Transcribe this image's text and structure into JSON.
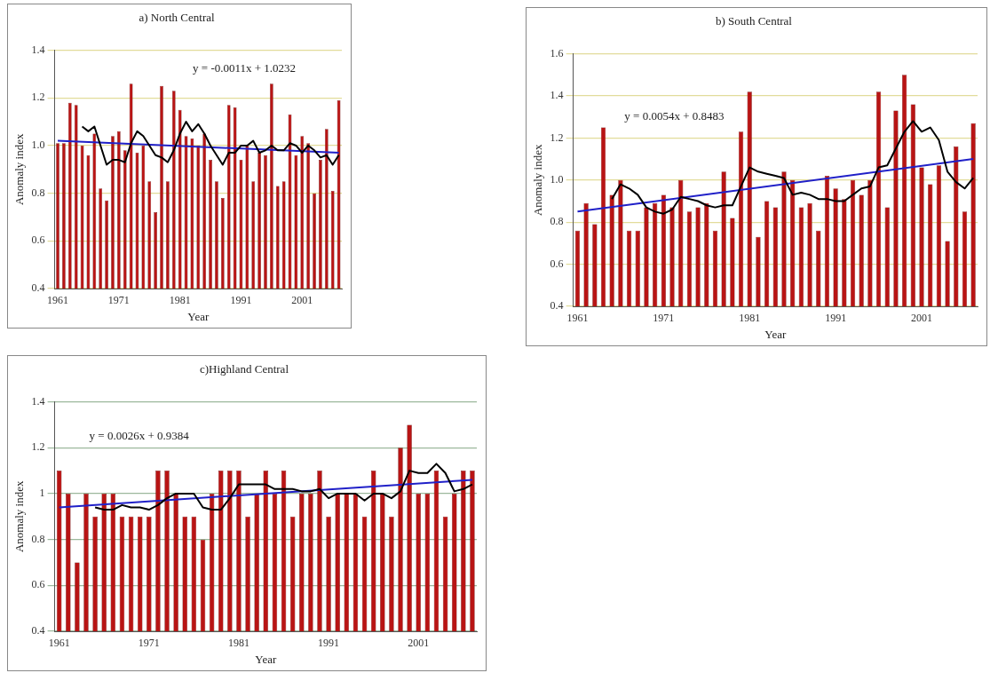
{
  "chart_data": [
    {
      "type": "bar",
      "title": "a) North Central",
      "xlabel": "Year",
      "ylabel": "Anomaly index",
      "grid": "y",
      "legend": false,
      "marker": "none",
      "line_style": "solid",
      "x": [
        1961,
        1962,
        1963,
        1964,
        1965,
        1966,
        1967,
        1968,
        1969,
        1970,
        1971,
        1972,
        1973,
        1974,
        1975,
        1976,
        1977,
        1978,
        1979,
        1980,
        1981,
        1982,
        1983,
        1984,
        1985,
        1986,
        1987,
        1988,
        1989,
        1990,
        1991,
        1992,
        1993,
        1994,
        1995,
        1996,
        1997,
        1998,
        1999,
        2000,
        2001,
        2002,
        2003,
        2004,
        2005,
        2006,
        2007
      ],
      "xlim": [
        1960.5,
        2007.5
      ],
      "xticks": [
        1961,
        1971,
        1981,
        1991,
        2001
      ],
      "ylim": [
        0.4,
        1.4
      ],
      "yticks": [
        0.4,
        0.6,
        0.8,
        {
          "value": 1,
          "label": "1.0"
        },
        1.2,
        1.4
      ],
      "annotations": [
        "y = -0.0011x + 1.0232"
      ],
      "series": [
        {
          "color": "#b81414",
          "values": [
            1.01,
            1.01,
            1.18,
            1.17,
            1.0,
            0.96,
            1.05,
            0.82,
            0.77,
            1.04,
            1.06,
            0.98,
            1.26,
            0.97,
            1.0,
            0.85,
            0.72,
            1.25,
            0.85,
            1.23,
            1.15,
            1.04,
            1.03,
            1.0,
            1.05,
            0.94,
            0.85,
            0.78,
            1.17,
            1.16,
            0.94,
            1.0,
            0.85,
            0.97,
            0.96,
            1.26,
            0.83,
            0.85,
            1.13,
            0.96,
            1.04,
            1.01,
            0.8,
            0.94,
            1.07,
            0.81,
            1.19
          ]
        },
        {
          "type": "line",
          "color": "#000000",
          "x": [
            1965,
            1966,
            1967,
            1968,
            1969,
            1970,
            1971,
            1972,
            1973,
            1974,
            1975,
            1976,
            1977,
            1978,
            1979,
            1980,
            1981,
            1982,
            1983,
            1984,
            1985,
            1986,
            1987,
            1988,
            1989,
            1990,
            1991,
            1992,
            1993,
            1994,
            1995,
            1996,
            1997,
            1998,
            1999,
            2000,
            2001,
            2002,
            2003,
            2004,
            2005,
            2006,
            2007
          ],
          "values": [
            1.08,
            1.06,
            1.08,
            1.0,
            0.92,
            0.94,
            0.94,
            0.93,
            1.01,
            1.06,
            1.04,
            1.0,
            0.96,
            0.95,
            0.93,
            0.98,
            1.05,
            1.1,
            1.06,
            1.09,
            1.05,
            1.0,
            0.96,
            0.92,
            0.97,
            0.97,
            1.0,
            1.0,
            1.02,
            0.97,
            0.98,
            1.0,
            0.98,
            0.98,
            1.01,
            1.0,
            0.97,
            1.0,
            0.98,
            0.95,
            0.96,
            0.92,
            0.96
          ]
        },
        {
          "type": "line",
          "color": "#2020c8",
          "x": [
            1961,
            2007
          ],
          "values": [
            1.02,
            0.97
          ]
        }
      ]
    },
    {
      "type": "bar",
      "title": "b) South Central",
      "xlabel": "Year",
      "ylabel": "Anomaly index",
      "grid": "y",
      "legend": false,
      "marker": "none",
      "line_style": "solid",
      "x": [
        1961,
        1962,
        1963,
        1964,
        1965,
        1966,
        1967,
        1968,
        1969,
        1970,
        1971,
        1972,
        1973,
        1974,
        1975,
        1976,
        1977,
        1978,
        1979,
        1980,
        1981,
        1982,
        1983,
        1984,
        1985,
        1986,
        1987,
        1988,
        1989,
        1990,
        1991,
        1992,
        1993,
        1994,
        1995,
        1996,
        1997,
        1998,
        1999,
        2000,
        2001,
        2002,
        2003,
        2004,
        2005,
        2006,
        2007
      ],
      "xlim": [
        1960.5,
        2007.5
      ],
      "xticks": [
        1961,
        1971,
        1981,
        1991,
        2001
      ],
      "ylim": [
        0.4,
        1.6
      ],
      "yticks": [
        0.4,
        0.6,
        0.8,
        {
          "value": 1,
          "label": "1.0"
        },
        1.2,
        1.4,
        1.6
      ],
      "annotations": [
        "y = 0.0054x + 0.8483"
      ],
      "series": [
        {
          "color": "#b81414",
          "values": [
            0.76,
            0.89,
            0.79,
            1.25,
            0.93,
            1.0,
            0.76,
            0.76,
            0.87,
            0.89,
            0.93,
            0.87,
            1.0,
            0.85,
            0.87,
            0.89,
            0.76,
            1.04,
            0.82,
            1.23,
            1.42,
            0.73,
            0.9,
            0.87,
            1.04,
            1.0,
            0.87,
            0.89,
            0.76,
            1.02,
            0.96,
            0.91,
            1.0,
            0.93,
            1.0,
            1.42,
            0.87,
            1.33,
            1.5,
            1.36,
            1.06,
            0.98,
            1.07,
            0.71,
            1.16,
            0.85,
            1.27
          ]
        },
        {
          "type": "line",
          "color": "#000000",
          "x": [
            1965,
            1966,
            1967,
            1968,
            1969,
            1970,
            1971,
            1972,
            1973,
            1974,
            1975,
            1976,
            1977,
            1978,
            1979,
            1980,
            1981,
            1982,
            1983,
            1984,
            1985,
            1986,
            1987,
            1988,
            1989,
            1990,
            1991,
            1992,
            1993,
            1994,
            1995,
            1996,
            1997,
            1998,
            1999,
            2000,
            2001,
            2002,
            2003,
            2004,
            2005,
            2006,
            2007
          ],
          "values": [
            0.91,
            0.98,
            0.96,
            0.93,
            0.87,
            0.85,
            0.84,
            0.86,
            0.92,
            0.91,
            0.9,
            0.88,
            0.87,
            0.88,
            0.88,
            0.97,
            1.06,
            1.04,
            1.03,
            1.02,
            1.01,
            0.93,
            0.94,
            0.93,
            0.91,
            0.91,
            0.9,
            0.9,
            0.93,
            0.96,
            0.97,
            1.06,
            1.07,
            1.15,
            1.23,
            1.28,
            1.23,
            1.25,
            1.19,
            1.04,
            0.99,
            0.96,
            1.01
          ]
        },
        {
          "type": "line",
          "color": "#2020c8",
          "x": [
            1961,
            2007
          ],
          "values": [
            0.85,
            1.1
          ]
        }
      ]
    },
    {
      "type": "bar",
      "title": "c)Highland Central",
      "xlabel": "Year",
      "ylabel": "Anomaly index",
      "grid": "y",
      "legend": false,
      "marker": "none",
      "line_style": "solid",
      "x": [
        1961,
        1962,
        1963,
        1964,
        1965,
        1966,
        1967,
        1968,
        1969,
        1970,
        1971,
        1972,
        1973,
        1974,
        1975,
        1976,
        1977,
        1978,
        1979,
        1980,
        1981,
        1982,
        1983,
        1984,
        1985,
        1986,
        1987,
        1988,
        1989,
        1990,
        1991,
        1992,
        1993,
        1994,
        1995,
        1996,
        1997,
        1998,
        1999,
        2000,
        2001,
        2002,
        2003,
        2004,
        2005,
        2006,
        2007
      ],
      "xlim": [
        1960.5,
        2007.5
      ],
      "xticks": [
        1961,
        1971,
        1981,
        1991,
        2001
      ],
      "ylim": [
        0.4,
        1.4
      ],
      "yticks": [
        0.4,
        0.6,
        0.8,
        1,
        1.2,
        1.4
      ],
      "annotations": [
        "y = 0.0026x + 0.9384"
      ],
      "series": [
        {
          "color": "#b81414",
          "values": [
            1.1,
            1.0,
            0.7,
            1.0,
            0.9,
            1.0,
            1.0,
            0.9,
            0.9,
            0.9,
            0.9,
            1.1,
            1.1,
            1.0,
            0.9,
            0.9,
            0.8,
            1.0,
            1.1,
            1.1,
            1.1,
            0.9,
            1.0,
            1.1,
            1.0,
            1.1,
            0.9,
            1.0,
            1.0,
            1.1,
            0.9,
            1.0,
            1.0,
            1.0,
            0.9,
            1.1,
            1.0,
            0.9,
            1.2,
            1.3,
            1.0,
            1.0,
            1.1,
            0.9,
            1.0,
            1.1,
            1.1
          ]
        },
        {
          "type": "line",
          "color": "#000000",
          "x": [
            1965,
            1966,
            1967,
            1968,
            1969,
            1970,
            1971,
            1972,
            1973,
            1974,
            1975,
            1976,
            1977,
            1978,
            1979,
            1980,
            1981,
            1982,
            1983,
            1984,
            1985,
            1986,
            1987,
            1988,
            1989,
            1990,
            1991,
            1992,
            1993,
            1994,
            1995,
            1996,
            1997,
            1998,
            1999,
            2000,
            2001,
            2002,
            2003,
            2004,
            2005,
            2006,
            2007
          ],
          "values": [
            0.94,
            0.93,
            0.93,
            0.95,
            0.94,
            0.94,
            0.93,
            0.95,
            0.98,
            1.0,
            1.0,
            1.0,
            0.94,
            0.93,
            0.93,
            0.98,
            1.04,
            1.04,
            1.04,
            1.04,
            1.02,
            1.02,
            1.02,
            1.01,
            1.01,
            1.02,
            0.98,
            1.0,
            1.0,
            1.0,
            0.97,
            1.0,
            1.0,
            0.98,
            1.01,
            1.1,
            1.09,
            1.09,
            1.13,
            1.09,
            1.01,
            1.02,
            1.04
          ]
        },
        {
          "type": "line",
          "color": "#2020c8",
          "x": [
            1961,
            2007
          ],
          "values": [
            0.94,
            1.06
          ]
        }
      ]
    }
  ]
}
